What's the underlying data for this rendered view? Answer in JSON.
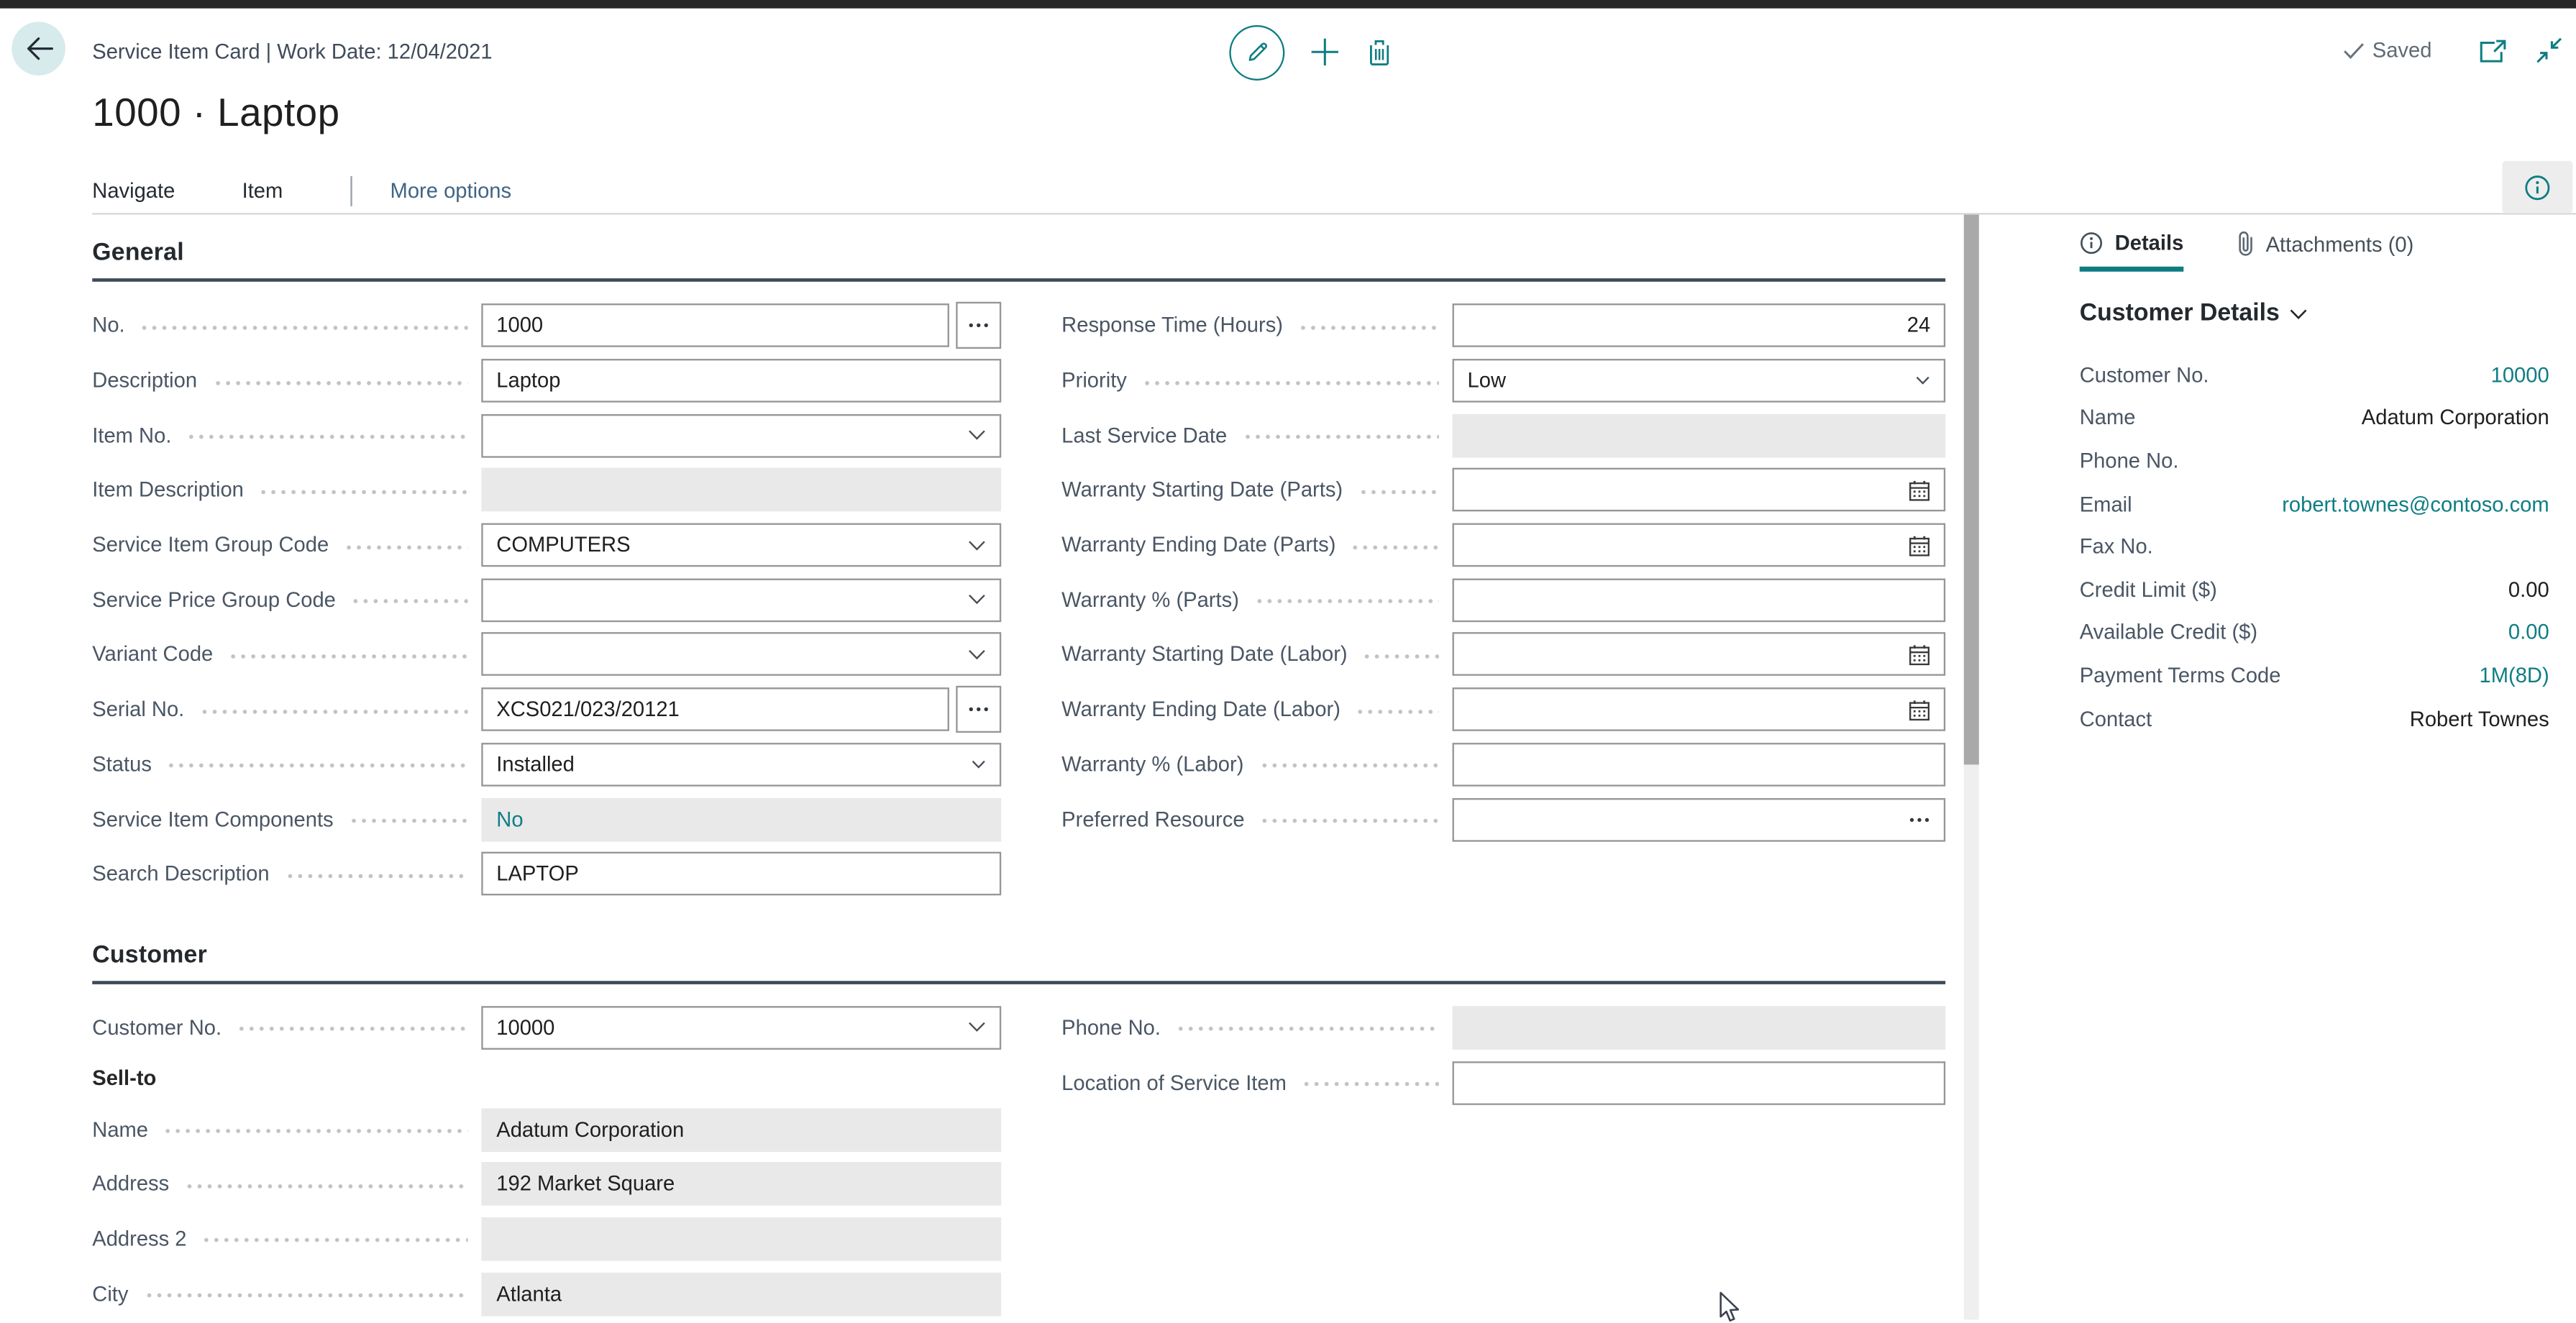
{
  "colors": {
    "accent": "#0e7d82",
    "link": "#0f7d84",
    "section_underline": "#3e4a59",
    "disabled_bg": "#e9e9e9"
  },
  "app_bar": {
    "title": "Service Item Card | Work Date: 12/04/2021",
    "saved_label": "Saved",
    "icons": [
      "back-icon",
      "edit-icon",
      "add-icon",
      "delete-icon",
      "check-icon",
      "open-in-new-window-icon",
      "collapse-icon"
    ]
  },
  "page_title": "1000 · Laptop",
  "nav": {
    "items": [
      "Navigate",
      "Item"
    ],
    "more_label": "More options",
    "info_icon": "info-icon"
  },
  "general": {
    "heading": "General",
    "left": [
      {
        "name": "no",
        "label": "No.",
        "value": "1000",
        "control": "lookup-ext"
      },
      {
        "name": "description",
        "label": "Description",
        "value": "Laptop",
        "control": "text"
      },
      {
        "name": "item-no",
        "label": "Item No.",
        "value": "",
        "control": "combo"
      },
      {
        "name": "item-description",
        "label": "Item Description",
        "value": "",
        "control": "disabled"
      },
      {
        "name": "service-item-group-code",
        "label": "Service Item Group Code",
        "value": "COMPUTERS",
        "control": "combo"
      },
      {
        "name": "service-price-group-code",
        "label": "Service Price Group Code",
        "value": "",
        "control": "combo"
      },
      {
        "name": "variant-code",
        "label": "Variant Code",
        "value": "",
        "control": "combo"
      },
      {
        "name": "serial-no",
        "label": "Serial No.",
        "value": "XCS021/023/20121",
        "control": "lookup-ext"
      },
      {
        "name": "status",
        "label": "Status",
        "value": "Installed",
        "control": "select"
      },
      {
        "name": "service-item-components",
        "label": "Service Item Components",
        "value": "No",
        "control": "disabled-link"
      },
      {
        "name": "search-description",
        "label": "Search Description",
        "value": "LAPTOP",
        "control": "text"
      }
    ],
    "right": [
      {
        "name": "response-time-hours",
        "label": "Response Time (Hours)",
        "value": "24",
        "control": "number"
      },
      {
        "name": "priority",
        "label": "Priority",
        "value": "Low",
        "control": "select"
      },
      {
        "name": "last-service-date",
        "label": "Last Service Date",
        "value": "",
        "control": "disabled"
      },
      {
        "name": "warranty-starting-date-parts",
        "label": "Warranty Starting Date (Parts)",
        "value": "",
        "control": "date"
      },
      {
        "name": "warranty-ending-date-parts",
        "label": "Warranty Ending Date (Parts)",
        "value": "",
        "control": "date"
      },
      {
        "name": "warranty-pct-parts",
        "label": "Warranty % (Parts)",
        "value": "",
        "control": "text"
      },
      {
        "name": "warranty-starting-date-labor",
        "label": "Warranty Starting Date (Labor)",
        "value": "",
        "control": "date"
      },
      {
        "name": "warranty-ending-date-labor",
        "label": "Warranty Ending Date (Labor)",
        "value": "",
        "control": "date"
      },
      {
        "name": "warranty-pct-labor",
        "label": "Warranty % (Labor)",
        "value": "",
        "control": "text"
      },
      {
        "name": "preferred-resource",
        "label": "Preferred Resource",
        "value": "",
        "control": "ellipsis-in"
      }
    ]
  },
  "customer": {
    "heading": "Customer",
    "left": [
      {
        "name": "customer-no",
        "label": "Customer No.",
        "value": "10000",
        "control": "combo"
      },
      {
        "subheading": "Sell-to"
      },
      {
        "name": "sell-to-name",
        "label": "Name",
        "value": "Adatum Corporation",
        "control": "disabled"
      },
      {
        "name": "sell-to-address",
        "label": "Address",
        "value": "192 Market Square",
        "control": "disabled"
      },
      {
        "name": "sell-to-address-2",
        "label": "Address 2",
        "value": "",
        "control": "disabled"
      },
      {
        "name": "sell-to-city",
        "label": "City",
        "value": "Atlanta",
        "control": "disabled"
      }
    ],
    "right": [
      {
        "name": "phone-no",
        "label": "Phone No.",
        "value": "",
        "control": "disabled"
      },
      {
        "name": "location-of-service-item",
        "label": "Location of Service Item",
        "value": "",
        "control": "text"
      }
    ]
  },
  "factbox": {
    "tabs": [
      {
        "label": "Details",
        "icon": "info-icon",
        "active": true
      },
      {
        "label": "Attachments (0)",
        "icon": "paperclip-icon",
        "active": false
      }
    ],
    "heading": "Customer Details",
    "rows": [
      {
        "name": "customer-no",
        "label": "Customer No.",
        "value": "10000",
        "link": true
      },
      {
        "name": "name",
        "label": "Name",
        "value": "Adatum Corporation",
        "link": false
      },
      {
        "name": "phone-no",
        "label": "Phone No.",
        "value": "",
        "link": false
      },
      {
        "name": "email",
        "label": "Email",
        "value": "robert.townes@contoso.com",
        "link": true
      },
      {
        "name": "fax-no",
        "label": "Fax No.",
        "value": "",
        "link": false
      },
      {
        "name": "credit-limit",
        "label": "Credit Limit ($)",
        "value": "0.00",
        "link": false
      },
      {
        "name": "available-credit",
        "label": "Available Credit ($)",
        "value": "0.00",
        "link": true
      },
      {
        "name": "payment-terms-code",
        "label": "Payment Terms Code",
        "value": "1M(8D)",
        "link": true
      },
      {
        "name": "contact",
        "label": "Contact",
        "value": "Robert Townes",
        "link": false
      }
    ]
  }
}
